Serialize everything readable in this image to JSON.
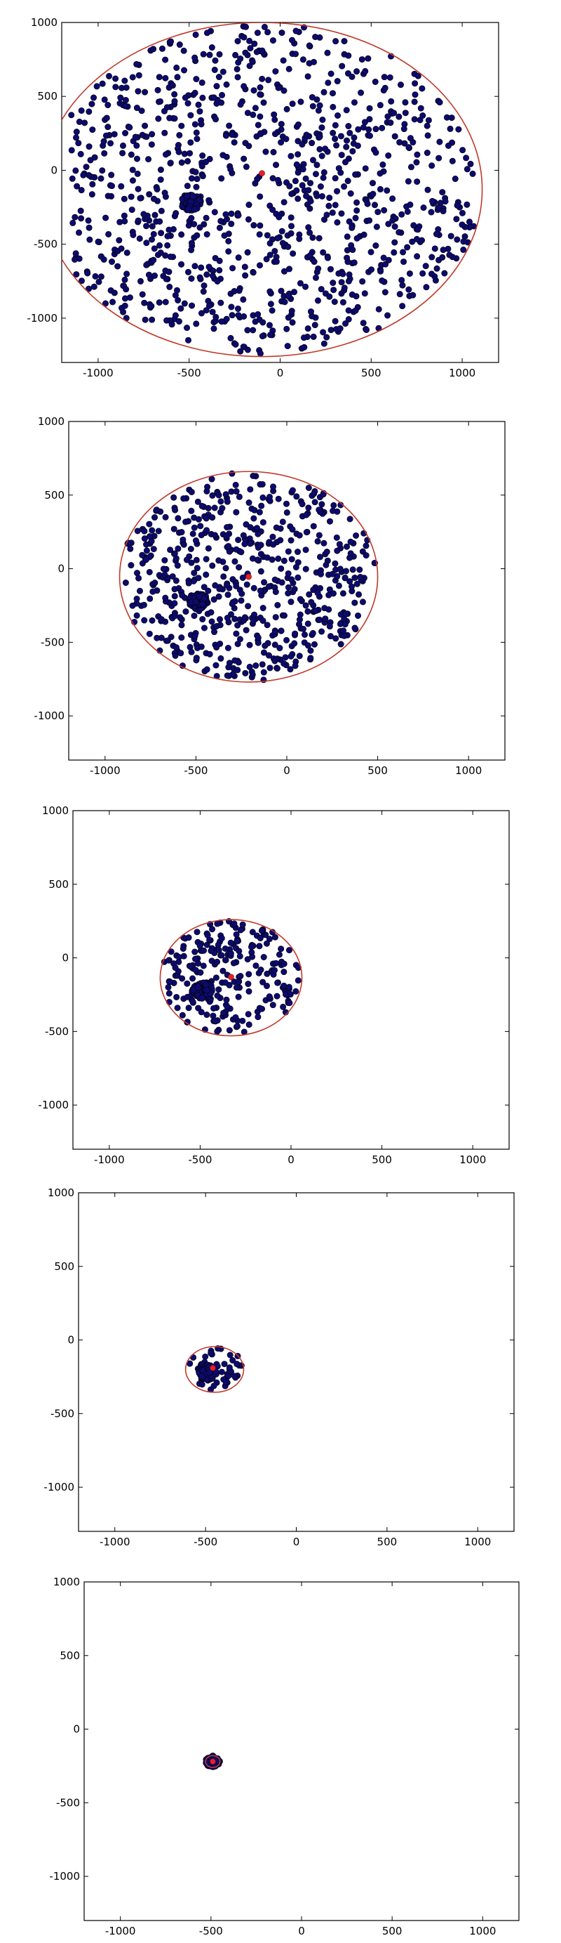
{
  "chart_data": [
    {
      "type": "scatter",
      "title": "",
      "xlabel": "",
      "ylabel": "",
      "xlim": [
        -1200,
        1200
      ],
      "ylim": [
        -1300,
        1000
      ],
      "xticks": [
        "-1000",
        "-500",
        "0",
        "500",
        "1000"
      ],
      "yticks": [
        "1000",
        "500",
        "0",
        "-500",
        "-1000"
      ],
      "point_count_estimate": 1000,
      "uniform_spread": {
        "x_range": [
          -1150,
          1130
        ],
        "y_range": [
          -1240,
          1000
        ]
      },
      "cluster": {
        "center": [
          -490,
          -220
        ],
        "radius": 55
      },
      "circle": {
        "center": [
          -100,
          -130
        ],
        "rx": 1210,
        "ry": 1130
      },
      "highlight_point": [
        -100,
        -20
      ],
      "colors": {
        "points": "#0d0a6e",
        "circle": "#c0392b",
        "highlight": "#e8202a"
      }
    },
    {
      "type": "scatter",
      "title": "",
      "xlabel": "",
      "ylabel": "",
      "xlim": [
        -1200,
        1200
      ],
      "ylim": [
        -1300,
        1000
      ],
      "xticks": [
        "-1000",
        "-500",
        "0",
        "500",
        "1000"
      ],
      "yticks": [
        "1000",
        "500",
        "0",
        "-500",
        "-1000"
      ],
      "point_count_estimate": 600,
      "uniform_spread": {
        "x_range": [
          -920,
          510
        ],
        "y_range": [
          -760,
          650
        ]
      },
      "cluster": {
        "center": [
          -490,
          -220
        ],
        "radius": 55
      },
      "circle": {
        "center": [
          -210,
          -55
        ],
        "rx": 710,
        "ry": 715
      },
      "highlight_point": [
        -210,
        -55
      ],
      "colors": {
        "points": "#0d0a6e",
        "circle": "#c0392b",
        "highlight": "#e8202a"
      }
    },
    {
      "type": "scatter",
      "title": "",
      "xlabel": "",
      "ylabel": "",
      "xlim": [
        -1200,
        1200
      ],
      "ylim": [
        -1300,
        1000
      ],
      "xticks": [
        "-1000",
        "-500",
        "0",
        "500",
        "1000"
      ],
      "yticks": [
        "1000",
        "500",
        "0",
        "-500",
        "-1000"
      ],
      "point_count_estimate": 240,
      "uniform_spread": {
        "x_range": [
          -700,
          60
        ],
        "y_range": [
          -520,
          260
        ]
      },
      "cluster": {
        "center": [
          -490,
          -220
        ],
        "radius": 55
      },
      "circle": {
        "center": [
          -330,
          -135
        ],
        "rx": 390,
        "ry": 395
      },
      "highlight_point": [
        -330,
        -130
      ],
      "colors": {
        "points": "#0d0a6e",
        "circle": "#c0392b",
        "highlight": "#e8202a"
      }
    },
    {
      "type": "scatter",
      "title": "",
      "xlabel": "",
      "ylabel": "",
      "xlim": [
        -1200,
        1200
      ],
      "ylim": [
        -1300,
        1000
      ],
      "xticks": [
        "-1000",
        "-500",
        "0",
        "500",
        "1000"
      ],
      "yticks": [
        "1000",
        "500",
        "0",
        "-500",
        "-1000"
      ],
      "point_count_estimate": 50,
      "uniform_spread": {
        "x_range": [
          -600,
          -300
        ],
        "y_range": [
          -340,
          -40
        ]
      },
      "cluster": {
        "center": [
          -490,
          -220
        ],
        "radius": 50
      },
      "circle": {
        "center": [
          -450,
          -200
        ],
        "rx": 160,
        "ry": 155
      },
      "highlight_point": [
        -460,
        -190
      ],
      "colors": {
        "points": "#0d0a6e",
        "circle": "#c0392b",
        "highlight": "#e8202a"
      }
    },
    {
      "type": "scatter",
      "title": "",
      "xlabel": "",
      "ylabel": "",
      "xlim": [
        -1200,
        1200
      ],
      "ylim": [
        -1300,
        1000
      ],
      "xticks": [
        "-1000",
        "-500",
        "0",
        "500",
        "1000"
      ],
      "yticks": [
        "1000",
        "500",
        "0",
        "-500",
        "-1000"
      ],
      "point_count_estimate": 20,
      "uniform_spread": {
        "x_range": [
          -520,
          -460
        ],
        "y_range": [
          -250,
          -190
        ]
      },
      "cluster": {
        "center": [
          -490,
          -220
        ],
        "radius": 38
      },
      "circle": {
        "center": [
          -490,
          -220
        ],
        "rx": 40,
        "ry": 40
      },
      "highlight_point": [
        -490,
        -220
      ],
      "colors": {
        "points": "#0d0a6e",
        "circle": "#c0392b",
        "highlight": "#e8202a"
      }
    }
  ]
}
